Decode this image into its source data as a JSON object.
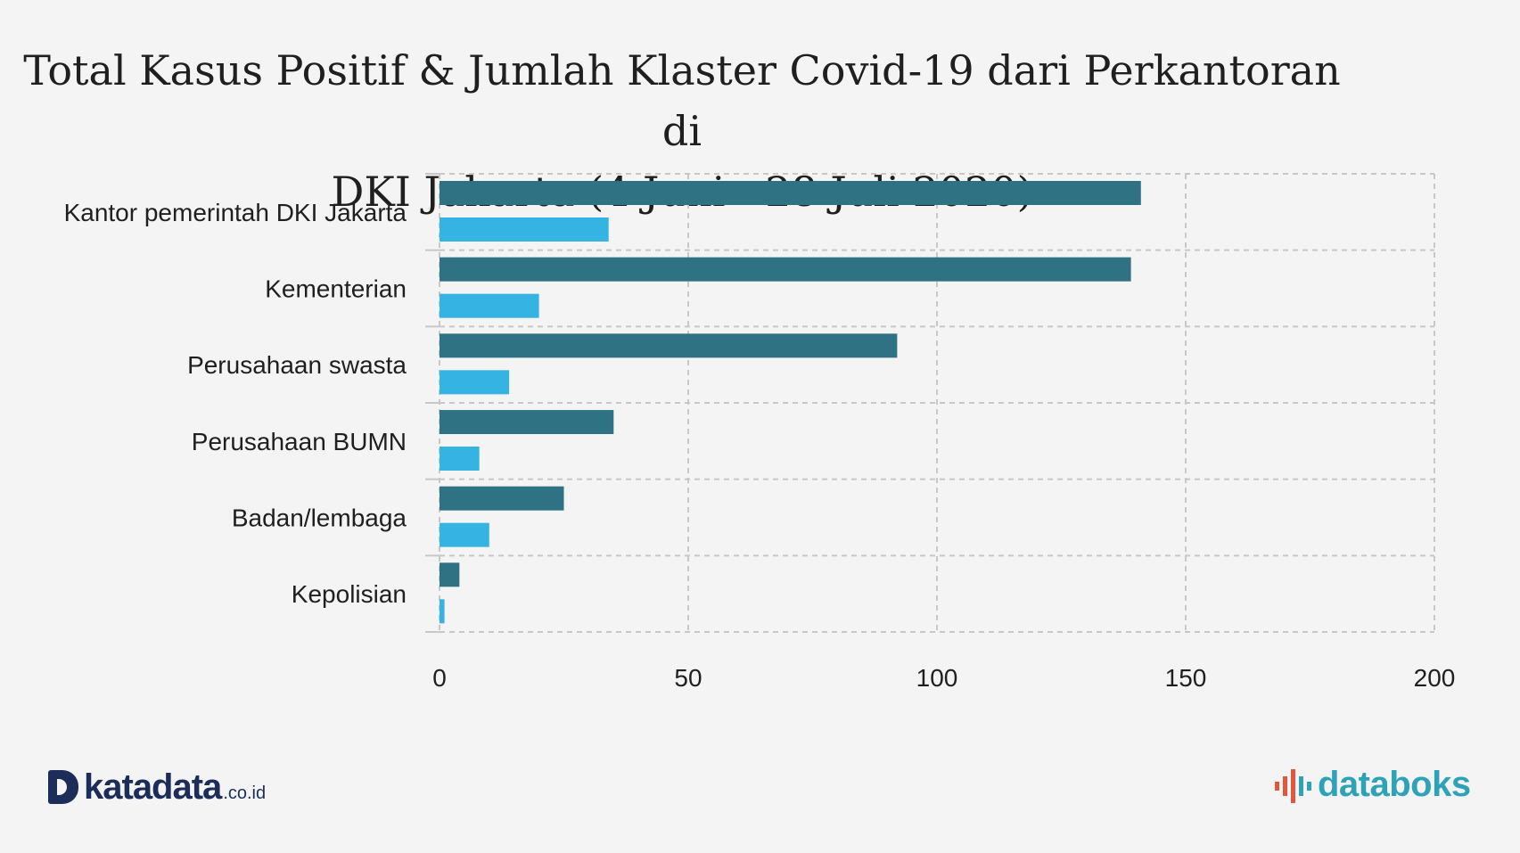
{
  "title_lines": [
    "Total Kasus Positif & Jumlah Klaster Covid-19 dari Perkantoran di",
    "DKI Jakarta (4 Juni - 28 Juli 2020)"
  ],
  "chart_data": {
    "type": "bar",
    "orientation": "horizontal",
    "title": "Total Kasus Positif & Jumlah Klaster Covid-19 dari Perkantoran di DKI Jakarta (4 Juni - 28 Juli 2020)",
    "categories": [
      "Kantor pemerintah DKI Jakarta",
      "Kementerian",
      "Perusahaan swasta",
      "Perusahaan BUMN",
      "Badan/lembaga",
      "Kepolisian"
    ],
    "series": [
      {
        "color": "#2e7283",
        "values": [
          141,
          139,
          92,
          35,
          25,
          4
        ]
      },
      {
        "color": "#35b3e2",
        "values": [
          34,
          20,
          14,
          8,
          10,
          1
        ]
      }
    ],
    "xlim": [
      0,
      200
    ],
    "xticks": [
      "0",
      "50",
      "100",
      "150",
      "200"
    ],
    "grid": true,
    "legend": "none"
  },
  "footer": {
    "left_logo": {
      "name": "katadata",
      "suffix": ".co.id",
      "color": "#1d2d5a"
    },
    "right_logo": {
      "name": "databoks",
      "color": "#2ea3b8",
      "accent": "#e2563a"
    }
  }
}
